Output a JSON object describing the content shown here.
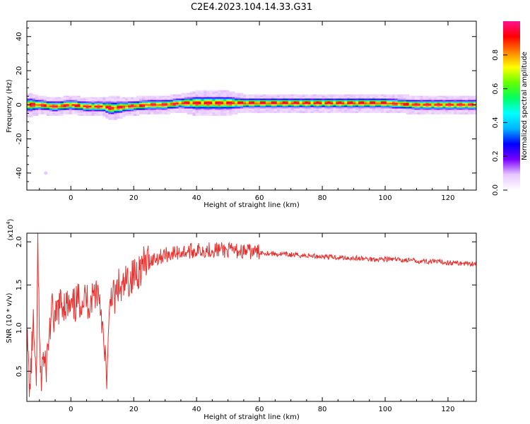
{
  "title": "C2E4.2023.104.14.33.G31",
  "colors": {
    "snr_line": "#e8302e",
    "colormap": [
      "#ffffff",
      "#e8c8ff",
      "#7a00ff",
      "#0000ff",
      "#00b4ff",
      "#00ffff",
      "#00ff60",
      "#66ff00",
      "#ffff00",
      "#ff8000",
      "#ff0000",
      "#ff1090"
    ]
  },
  "chart_data": [
    {
      "type": "heatmap",
      "xlabel": "Height of straight line (km)",
      "ylabel": "Frequency (Hz)",
      "xlim": [
        -14,
        129
      ],
      "ylim": [
        -50,
        49
      ],
      "x_ticks": [
        "0",
        "20",
        "40",
        "60",
        "80",
        "100",
        "120"
      ],
      "x_tick_values": [
        0,
        20,
        40,
        60,
        80,
        100,
        120
      ],
      "y_ticks": [
        "-40",
        "-20",
        "0",
        "20",
        "40"
      ],
      "y_tick_values": [
        -40,
        -20,
        0,
        20,
        40
      ],
      "colorbar": {
        "label": "Normalized spectral amplitude",
        "range": [
          0,
          1
        ],
        "ticks": [
          "0.0",
          "0.2",
          "0.4",
          "0.6",
          "0.8"
        ],
        "tick_values": [
          0.0,
          0.2,
          0.4,
          0.6,
          0.8
        ]
      },
      "ridge": {
        "description_values": "dominant frequency along height",
        "x": [
          -13,
          -10,
          -5,
          0,
          5,
          10,
          13,
          18,
          25,
          30,
          35,
          40,
          45,
          50,
          55,
          60,
          70,
          80,
          90,
          100,
          110,
          120,
          129
        ],
        "frequency": [
          0,
          0,
          -1,
          0,
          -1,
          -1,
          -2,
          -1,
          0,
          0,
          1,
          1,
          1,
          1,
          1,
          1,
          1,
          1,
          1,
          1,
          0,
          0,
          0
        ],
        "half_width": [
          4,
          3,
          3,
          3,
          3,
          3,
          4,
          3,
          3,
          3,
          3,
          4,
          4,
          4,
          3,
          3,
          3,
          3,
          3,
          3,
          3,
          3,
          3
        ]
      },
      "outliers": [
        {
          "x": -8,
          "frequency": -40
        }
      ]
    },
    {
      "type": "line",
      "xlabel": "Height of straight line (km)",
      "ylabel": "SNR (10 * v/v)",
      "y_multiplier": "(x10",
      "y_multiplier_exp": "4",
      "y_multiplier_close": ")",
      "xlim": [
        -14,
        129
      ],
      "ylim": [
        0.15,
        2.1
      ],
      "x_ticks": [
        "0",
        "20",
        "40",
        "60",
        "80",
        "100",
        "120"
      ],
      "x_tick_values": [
        0,
        20,
        40,
        60,
        80,
        100,
        120
      ],
      "y_ticks": [
        "0.5",
        "1.0",
        "1.5",
        "2.0"
      ],
      "y_tick_values": [
        0.5,
        1.0,
        1.5,
        2.0
      ],
      "series": [
        {
          "x": [
            -14,
            -13,
            -12,
            -11,
            -10.5,
            -10,
            -9.5,
            -9,
            -8,
            -7,
            -6,
            -5,
            -4,
            -2,
            0,
            2,
            4,
            6,
            8,
            9,
            10,
            10.5,
            11,
            11.5,
            12,
            12.5,
            13,
            14,
            15,
            16,
            18,
            20,
            22,
            24,
            26,
            30,
            35,
            40,
            45,
            50,
            55,
            60,
            65,
            70,
            75,
            80,
            85,
            90,
            95,
            100,
            105,
            110,
            115,
            120,
            125,
            129
          ],
          "y": [
            0.9,
            0.25,
            1.1,
            0.2,
            2.05,
            0.8,
            0.3,
            0.7,
            0.5,
            0.9,
            1.2,
            1.05,
            1.25,
            1.3,
            1.2,
            1.3,
            1.35,
            1.3,
            1.45,
            1.4,
            1.1,
            0.7,
            0.6,
            0.45,
            0.85,
            1.3,
            1.45,
            1.3,
            1.5,
            1.4,
            1.55,
            1.6,
            1.7,
            1.75,
            1.8,
            1.85,
            1.88,
            1.9,
            1.91,
            1.9,
            1.89,
            1.88,
            1.86,
            1.85,
            1.84,
            1.83,
            1.82,
            1.81,
            1.8,
            1.8,
            1.79,
            1.78,
            1.77,
            1.76,
            1.75,
            1.75
          ]
        }
      ]
    }
  ]
}
